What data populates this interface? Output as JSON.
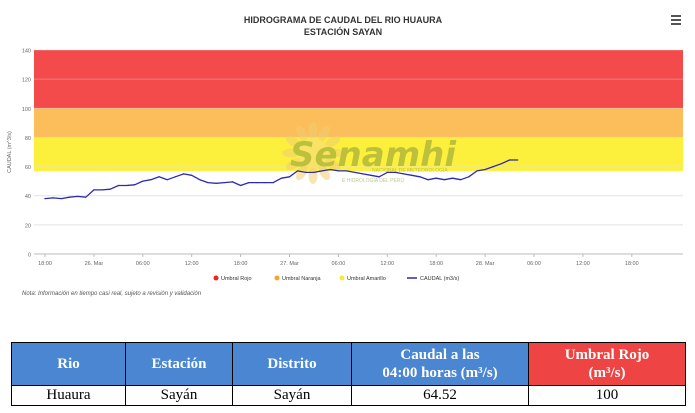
{
  "chart_data": {
    "type": "line",
    "title": "HIDROGRAMA DE CAUDAL DEL RIO HUAURA",
    "subtitle": "ESTACIÓN SAYAN",
    "ylabel": "CAUDAL (m^3/s)",
    "ylim": [
      0,
      140
    ],
    "yticks": [
      "0",
      "20",
      "40",
      "60",
      "80",
      "100",
      "120",
      "140"
    ],
    "xticks": [
      "18:00",
      "26. Mar",
      "06:00",
      "12:00",
      "18:00",
      "27. Mar",
      "06:00",
      "12:00",
      "18:00",
      "28. Mar",
      "06:00",
      "12:00",
      "18:00"
    ],
    "x_hours": [
      0,
      1,
      2,
      3,
      4,
      5,
      6,
      7,
      8,
      9,
      10,
      11,
      12,
      13,
      14,
      15,
      16,
      17,
      18,
      19,
      20,
      21,
      22,
      23,
      24,
      25,
      26,
      27,
      28,
      29,
      30,
      31,
      32,
      33,
      34,
      35,
      36,
      37,
      38,
      39,
      40,
      41,
      42,
      43,
      44,
      45,
      46,
      47,
      48,
      49,
      50,
      51,
      52,
      53,
      54,
      55,
      56,
      57,
      58
    ],
    "series": [
      {
        "name": "CAUDAL (m3/s)",
        "color": "#2b2bb0",
        "values": [
          38,
          38.5,
          38,
          39,
          39.5,
          39,
          44,
          44,
          44.5,
          47,
          47,
          47.5,
          50,
          51,
          53,
          51,
          53,
          55,
          54,
          51,
          49,
          48.5,
          49,
          49.5,
          47,
          49,
          49,
          49,
          49,
          52,
          53,
          57,
          56,
          56,
          57,
          58,
          57,
          57,
          56,
          55,
          54,
          53,
          56,
          56,
          55,
          54,
          53,
          51,
          52,
          51,
          52,
          51,
          53,
          57,
          58,
          60,
          62,
          64.5,
          64.52
        ]
      }
    ],
    "thresholds": [
      {
        "name": "Umbral Rojo",
        "from": 100,
        "to": 140,
        "color": "#f34b4b"
      },
      {
        "name": "Umbral Naranja",
        "from": 80,
        "to": 100,
        "color": "#fcbd5b"
      },
      {
        "name": "Umbral Amarillo",
        "from": 57,
        "to": 80,
        "color": "#fdf03d"
      }
    ],
    "legend": [
      {
        "label": "Umbral Rojo",
        "color": "#ee2222",
        "kind": "dot"
      },
      {
        "label": "Umbral Naranja",
        "color": "#f5a623",
        "kind": "dot"
      },
      {
        "label": "Umbral Amarillo",
        "color": "#f5e93c",
        "kind": "dot"
      },
      {
        "label": "CAUDAL (m3/s)",
        "color": "#2b2bb0",
        "kind": "line"
      }
    ],
    "legend_position": "bottom-center",
    "grid": true
  },
  "watermark": {
    "brand": "Senamhi",
    "tagline": "E HIDROLOGÍA DEL PERÚ",
    "tagline2": "NACIONAL DE METEOROLOGÍA"
  },
  "note": "Nota: Información en tiempo casi real, sujeto a revisión y validación",
  "table": {
    "headers": {
      "rio": "Rio",
      "estacion": "Estación",
      "distrito": "Distrito",
      "caudal_a": "Caudal a las",
      "caudal_b": "04:00 horas (m³/s)",
      "umbral_a": "Umbral Rojo",
      "umbral_b": "(m³/s)"
    },
    "row": {
      "rio": "Huaura",
      "estacion": "Sayán",
      "distrito": "Sayán",
      "caudal": "64.52",
      "umbral": "100"
    }
  }
}
